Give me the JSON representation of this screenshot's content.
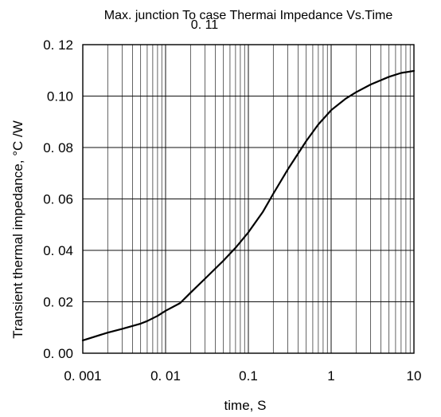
{
  "chart_data": {
    "type": "line",
    "title": "Max. junction To case Thermai Impedance Vs.Time",
    "annotation": "0. 11",
    "xlabel": "time, S",
    "ylabel": "Transient thermal impedance, °C /W",
    "x_scale": "log",
    "xlim": [
      0.001,
      10
    ],
    "ylim": [
      0.0,
      0.12
    ],
    "grid": true,
    "x_tick_labels": [
      "0. 001",
      "0. 01",
      "0.1",
      "1",
      "10"
    ],
    "x_tick_values": [
      0.001,
      0.01,
      0.1,
      1,
      10
    ],
    "y_tick_labels": [
      "0. 00",
      "0. 02",
      "0. 04",
      "0. 06",
      "0. 08",
      "0.10",
      "0. 12"
    ],
    "y_tick_values": [
      0.0,
      0.02,
      0.04,
      0.06,
      0.08,
      0.1,
      0.12
    ],
    "series": [
      {
        "x": [
          0.001,
          0.002,
          0.003,
          0.005,
          0.006,
          0.008,
          0.01,
          0.015,
          0.02,
          0.03,
          0.05,
          0.07,
          0.1,
          0.15,
          0.2,
          0.3,
          0.5,
          0.7,
          1.0,
          1.5,
          2.0,
          3.0,
          5.0,
          7.0,
          10.0
        ],
        "y": [
          0.005,
          0.008,
          0.0095,
          0.0115,
          0.0125,
          0.0145,
          0.0165,
          0.0195,
          0.0235,
          0.029,
          0.036,
          0.041,
          0.047,
          0.055,
          0.062,
          0.0715,
          0.0825,
          0.089,
          0.0945,
          0.099,
          0.1015,
          0.1045,
          0.1075,
          0.109,
          0.1098
        ]
      }
    ]
  }
}
